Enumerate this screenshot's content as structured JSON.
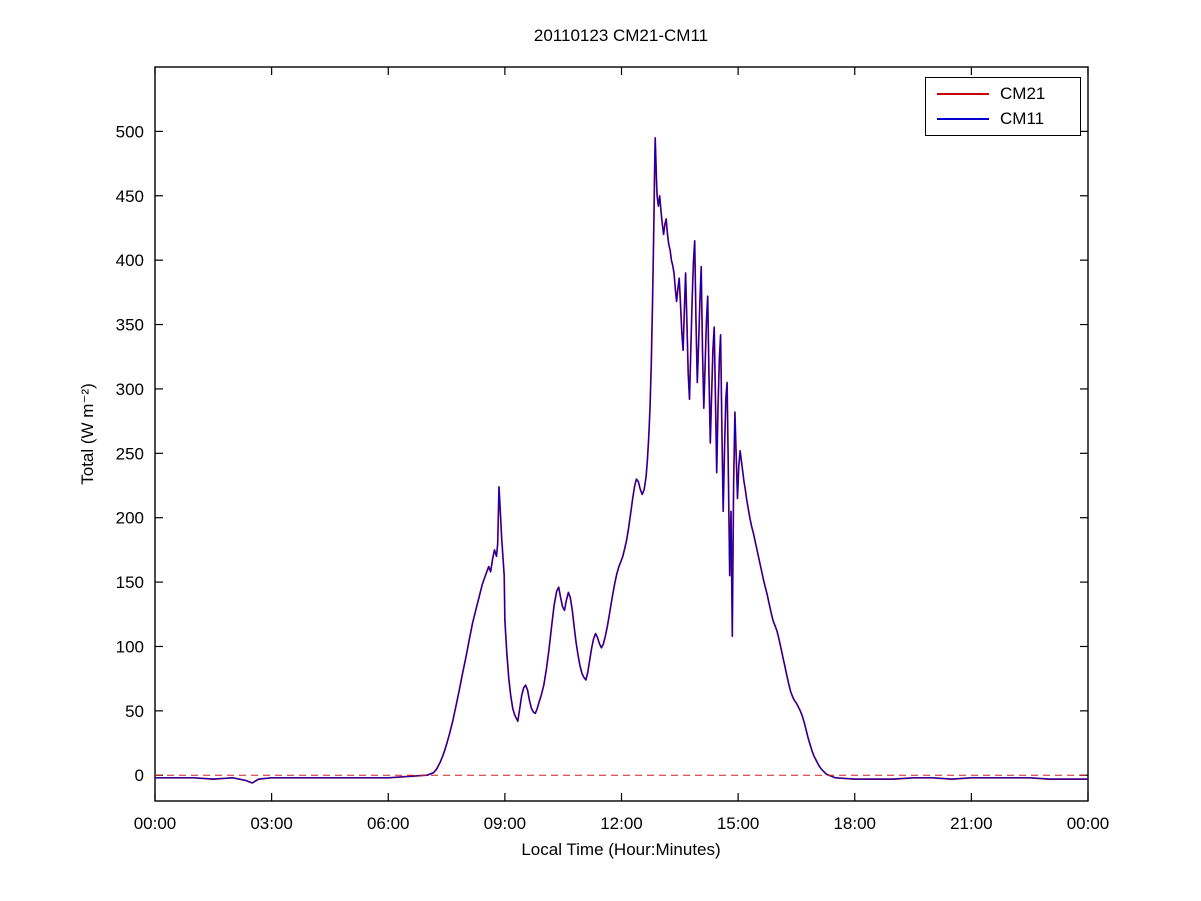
{
  "chart_data": {
    "type": "line",
    "title": "20110123 CM21-CM11",
    "xlabel": "Local Time (Hour:Minutes)",
    "ylabel": "Total (W m⁻²)",
    "xlim_minutes": [
      0,
      1440
    ],
    "ylim": [
      -20,
      550
    ],
    "grid": false,
    "legend_position": "top-right",
    "x_ticks": [
      {
        "m": 0,
        "label": "00:00"
      },
      {
        "m": 180,
        "label": "03:00"
      },
      {
        "m": 360,
        "label": "06:00"
      },
      {
        "m": 540,
        "label": "09:00"
      },
      {
        "m": 720,
        "label": "12:00"
      },
      {
        "m": 900,
        "label": "15:00"
      },
      {
        "m": 1080,
        "label": "18:00"
      },
      {
        "m": 1260,
        "label": "21:00"
      },
      {
        "m": 1440,
        "label": "00:00"
      }
    ],
    "y_ticks": [
      0,
      50,
      100,
      150,
      200,
      250,
      300,
      350,
      400,
      450,
      500
    ],
    "zero_line": {
      "value": 0,
      "color": "#cc2222",
      "style": "dashed"
    },
    "x_minutes": [
      0,
      30,
      60,
      90,
      120,
      140,
      150,
      160,
      180,
      210,
      240,
      270,
      300,
      330,
      360,
      390,
      420,
      430,
      435,
      440,
      445,
      450,
      455,
      460,
      465,
      470,
      475,
      480,
      485,
      490,
      495,
      500,
      505,
      510,
      515,
      518,
      521,
      524,
      527,
      529,
      531,
      533,
      535,
      537,
      539,
      540,
      543,
      546,
      549,
      552,
      555,
      558,
      560,
      563,
      566,
      569,
      572,
      575,
      578,
      581,
      584,
      587,
      590,
      593,
      596,
      600,
      604,
      608,
      612,
      616,
      620,
      623,
      626,
      629,
      632,
      635,
      638,
      641,
      644,
      647,
      650,
      653,
      656,
      659,
      662,
      665,
      668,
      671,
      674,
      677,
      680,
      683,
      686,
      689,
      692,
      695,
      698,
      701,
      704,
      707,
      710,
      713,
      716,
      719,
      722,
      725,
      728,
      731,
      734,
      737,
      740,
      743,
      746,
      749,
      752,
      755,
      758,
      760,
      762,
      764,
      766,
      768,
      770,
      771,
      772,
      773,
      774,
      775,
      777,
      779,
      781,
      783,
      785,
      787,
      789,
      791,
      793,
      795,
      797,
      799,
      801,
      803,
      805,
      807,
      809,
      811,
      813,
      815,
      817,
      819,
      821,
      823,
      825,
      827,
      829,
      831,
      833,
      835,
      837,
      839,
      841,
      843,
      845,
      847,
      849,
      851,
      853,
      855,
      857,
      859,
      861,
      863,
      865,
      867,
      869,
      871,
      873,
      875,
      877,
      879,
      881,
      883,
      885,
      887,
      889,
      891,
      893,
      895,
      897,
      899,
      901,
      903,
      905,
      907,
      909,
      911,
      913,
      915,
      918,
      921,
      924,
      927,
      930,
      933,
      936,
      939,
      942,
      945,
      948,
      951,
      954,
      957,
      960,
      963,
      966,
      969,
      972,
      975,
      978,
      981,
      984,
      987,
      990,
      993,
      996,
      999,
      1002,
      1005,
      1008,
      1011,
      1014,
      1017,
      1020,
      1024,
      1028,
      1032,
      1036,
      1040,
      1045,
      1050,
      1080,
      1110,
      1140,
      1170,
      1200,
      1230,
      1260,
      1290,
      1320,
      1350,
      1380,
      1410,
      1440
    ],
    "series": [
      {
        "name": "CM21",
        "color": "#cc0000",
        "values": [
          -2,
          -2,
          -2,
          -3,
          -2,
          -4,
          -6,
          -3,
          -2,
          -2,
          -2,
          -2,
          -2,
          -2,
          -2,
          -1,
          0,
          2,
          5,
          10,
          16,
          24,
          33,
          43,
          55,
          67,
          80,
          92,
          105,
          118,
          128,
          138,
          148,
          155,
          162,
          158,
          168,
          175,
          170,
          180,
          224,
          205,
          185,
          170,
          155,
          120,
          95,
          75,
          62,
          52,
          47,
          44,
          42,
          52,
          62,
          68,
          70,
          66,
          58,
          52,
          49,
          48,
          52,
          57,
          62,
          70,
          82,
          97,
          115,
          132,
          143,
          146,
          138,
          131,
          128,
          136,
          142,
          138,
          128,
          115,
          103,
          93,
          85,
          79,
          76,
          74,
          80,
          90,
          99,
          106,
          110,
          107,
          102,
          99,
          102,
          108,
          115,
          124,
          133,
          142,
          150,
          157,
          162,
          166,
          170,
          176,
          183,
          192,
          203,
          214,
          224,
          230,
          228,
          222,
          218,
          222,
          232,
          245,
          262,
          285,
          320,
          370,
          430,
          465,
          495,
          480,
          462,
          450,
          442,
          450,
          438,
          428,
          420,
          428,
          432,
          420,
          412,
          408,
          400,
          396,
          390,
          378,
          368,
          378,
          386,
          366,
          344,
          330,
          360,
          390,
          352,
          312,
          292,
          330,
          368,
          398,
          415,
          352,
          305,
          335,
          368,
          395,
          330,
          285,
          318,
          352,
          372,
          310,
          258,
          295,
          330,
          348,
          295,
          235,
          285,
          322,
          342,
          268,
          205,
          252,
          292,
          305,
          232,
          155,
          205,
          108,
          225,
          282,
          248,
          215,
          240,
          252,
          244,
          236,
          228,
          222,
          215,
          209,
          200,
          193,
          187,
          180,
          173,
          166,
          159,
          152,
          146,
          140,
          133,
          126,
          120,
          116,
          112,
          106,
          99,
          92,
          85,
          78,
          71,
          65,
          61,
          58,
          56,
          53,
          50,
          46,
          41,
          35,
          29,
          24,
          19,
          15,
          12,
          8,
          5,
          3,
          1,
          0,
          -1,
          -2,
          -3,
          -3,
          -3,
          -2,
          -2,
          -3,
          -2,
          -2,
          -2,
          -2,
          -3,
          -3,
          -3
        ]
      },
      {
        "name": "CM11",
        "color": "#0000cc",
        "values": [
          -2,
          -2,
          -2,
          -3,
          -2,
          -4,
          -6,
          -3,
          -2,
          -2,
          -2,
          -2,
          -2,
          -2,
          -2,
          -1,
          0,
          2,
          5,
          10,
          16,
          24,
          33,
          43,
          55,
          67,
          80,
          92,
          105,
          118,
          128,
          138,
          148,
          155,
          162,
          158,
          168,
          175,
          170,
          180,
          224,
          205,
          185,
          170,
          155,
          120,
          95,
          75,
          62,
          52,
          47,
          44,
          42,
          52,
          62,
          68,
          70,
          66,
          58,
          52,
          49,
          48,
          52,
          57,
          62,
          70,
          82,
          97,
          115,
          132,
          143,
          146,
          138,
          131,
          128,
          136,
          142,
          138,
          128,
          115,
          103,
          93,
          85,
          79,
          76,
          74,
          80,
          90,
          99,
          106,
          110,
          107,
          102,
          99,
          102,
          108,
          115,
          124,
          133,
          142,
          150,
          157,
          162,
          166,
          170,
          176,
          183,
          192,
          203,
          214,
          224,
          230,
          228,
          222,
          218,
          222,
          232,
          245,
          262,
          285,
          320,
          370,
          430,
          465,
          495,
          480,
          462,
          450,
          442,
          450,
          438,
          428,
          420,
          428,
          432,
          420,
          412,
          408,
          400,
          396,
          390,
          378,
          368,
          378,
          386,
          366,
          344,
          330,
          360,
          390,
          352,
          312,
          292,
          330,
          368,
          398,
          415,
          352,
          305,
          335,
          368,
          395,
          330,
          285,
          318,
          352,
          372,
          310,
          258,
          295,
          330,
          348,
          295,
          235,
          285,
          322,
          342,
          268,
          205,
          252,
          292,
          305,
          232,
          155,
          205,
          108,
          225,
          282,
          248,
          215,
          240,
          252,
          244,
          236,
          228,
          222,
          215,
          209,
          200,
          193,
          187,
          180,
          173,
          166,
          159,
          152,
          146,
          140,
          133,
          126,
          120,
          116,
          112,
          106,
          99,
          92,
          85,
          78,
          71,
          65,
          61,
          58,
          56,
          53,
          50,
          46,
          41,
          35,
          29,
          24,
          19,
          15,
          12,
          8,
          5,
          3,
          1,
          0,
          -1,
          -2,
          -3,
          -3,
          -3,
          -2,
          -2,
          -3,
          -2,
          -2,
          -2,
          -2,
          -3,
          -3,
          -3
        ]
      }
    ]
  }
}
